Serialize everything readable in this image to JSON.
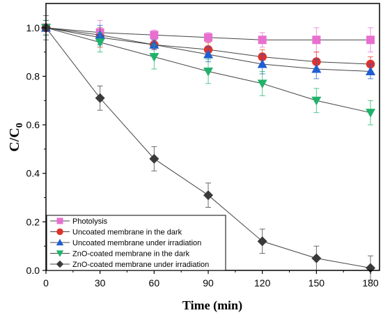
{
  "chart_data": {
    "type": "scatter",
    "xlabel": "Time (min)",
    "ylabel": "C/C",
    "ylabel_sub": "0",
    "xlim": [
      0,
      185
    ],
    "ylim": [
      0,
      1.1
    ],
    "x_ticks": [
      0,
      30,
      60,
      90,
      120,
      150,
      180
    ],
    "y_ticks": [
      0.0,
      0.2,
      0.4,
      0.6,
      0.8,
      1.0
    ],
    "y_tick_labels": [
      "0.0",
      "0.2",
      "0.4",
      "0.6",
      "0.8",
      "1.0"
    ],
    "x": [
      0,
      30,
      60,
      90,
      120,
      150,
      180
    ],
    "legend_position": "bottom-left",
    "grid": false,
    "series": [
      {
        "name": "Photolysis",
        "color": "#e86fcf",
        "marker": "square",
        "values": [
          1.0,
          0.98,
          0.97,
          0.96,
          0.95,
          0.95,
          0.95
        ],
        "errors": [
          0.03,
          0.05,
          0.02,
          0.02,
          0.03,
          0.05,
          0.05
        ]
      },
      {
        "name": "Uncoated membrane in the dark",
        "color": "#e0322c",
        "marker": "circle",
        "values": [
          1.0,
          0.96,
          0.93,
          0.91,
          0.88,
          0.86,
          0.85
        ],
        "errors": [
          0.03,
          0.04,
          0.02,
          0.03,
          0.03,
          0.04,
          0.03
        ]
      },
      {
        "name": "Uncoated membrane under irradiation",
        "color": "#1f5fd1",
        "marker": "triangle-up",
        "values": [
          1.0,
          0.97,
          0.93,
          0.89,
          0.85,
          0.83,
          0.82
        ],
        "errors": [
          0.03,
          0.04,
          0.02,
          0.03,
          0.04,
          0.04,
          0.03
        ]
      },
      {
        "name": "ZnO-coated membrane in the dark",
        "color": "#1fb36a",
        "marker": "triangle-down",
        "values": [
          1.0,
          0.94,
          0.88,
          0.82,
          0.77,
          0.7,
          0.65
        ],
        "errors": [
          0.03,
          0.04,
          0.05,
          0.05,
          0.05,
          0.05,
          0.05
        ]
      },
      {
        "name": "ZnO-coated membrane under irradiation",
        "color": "#3a3a3a",
        "marker": "diamond",
        "values": [
          1.0,
          0.71,
          0.46,
          0.31,
          0.12,
          0.05,
          0.01
        ],
        "errors": [
          0.05,
          0.05,
          0.05,
          0.05,
          0.05,
          0.05,
          0.05
        ]
      }
    ]
  }
}
